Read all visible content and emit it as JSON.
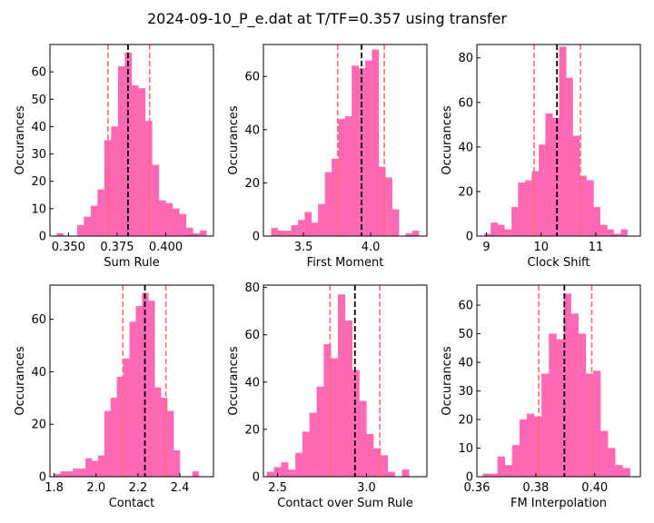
{
  "figure": {
    "title": "2024-09-10_P_e.dat at T/TF=0.357 using transfer"
  },
  "style": {
    "bar_color": "#ff69b4",
    "bar_edge": "#ff69b4",
    "mean_line_color": "#000000",
    "sigma_line_color": "#ff6b6b"
  },
  "chart_data": [
    {
      "type": "bar",
      "title": "",
      "xlabel": "Sum Rule",
      "ylabel": "Occurances",
      "xlim": [
        0.3405,
        0.4245
      ],
      "ylim": [
        0,
        70
      ],
      "xticks": [
        0.35,
        0.375,
        0.4
      ],
      "xtick_labels": [
        "0.350",
        "0.375",
        "0.400"
      ],
      "yticks": [
        0,
        10,
        20,
        30,
        40,
        50,
        60
      ],
      "bin_edges": [
        0.344,
        0.3475,
        0.351,
        0.3545,
        0.358,
        0.3615,
        0.365,
        0.3685,
        0.372,
        0.3755,
        0.379,
        0.3825,
        0.386,
        0.3895,
        0.393,
        0.3965,
        0.4,
        0.4035,
        0.407,
        0.4105,
        0.414,
        0.4175,
        0.421
      ],
      "counts": [
        1,
        0,
        0,
        4,
        7,
        11,
        17,
        35,
        40,
        62,
        67,
        55,
        54,
        42,
        26,
        13,
        12,
        10,
        8,
        3,
        1,
        2
      ],
      "mean": 0.3806,
      "sigma_low": 0.3703,
      "sigma_high": 0.3917
    },
    {
      "type": "bar",
      "title": "",
      "xlabel": "First Moment",
      "ylabel": "Occurances",
      "xlim": [
        3.202,
        4.418
      ],
      "ylim": [
        0,
        72
      ],
      "xticks": [
        3.5,
        4.0
      ],
      "xtick_labels": [
        "3.5",
        "4.0"
      ],
      "yticks": [
        0,
        20,
        40,
        60
      ],
      "bin_edges": [
        3.26,
        3.31,
        3.36,
        3.41,
        3.46,
        3.51,
        3.56,
        3.61,
        3.66,
        3.71,
        3.76,
        3.81,
        3.86,
        3.91,
        3.96,
        4.01,
        4.06,
        4.11,
        4.16,
        4.21,
        4.26,
        4.31,
        4.36
      ],
      "counts": [
        3,
        2,
        2,
        4,
        6,
        9,
        5,
        12,
        24,
        29,
        44,
        45,
        64,
        63,
        66,
        70,
        26,
        22,
        10,
        0,
        1,
        2
      ],
      "mean": 3.932,
      "sigma_low": 3.754,
      "sigma_high": 4.101
    },
    {
      "type": "bar",
      "title": "",
      "xlabel": "Clock Shift",
      "ylabel": "Occurances",
      "xlim": [
        8.825,
        11.815
      ],
      "ylim": [
        0,
        86
      ],
      "xticks": [
        9,
        10,
        11
      ],
      "xtick_labels": [
        "9",
        "10",
        "11"
      ],
      "yticks": [
        0,
        20,
        40,
        60,
        80
      ],
      "bin_edges": [
        8.96,
        9.08,
        9.21,
        9.33,
        9.46,
        9.58,
        9.71,
        9.83,
        9.96,
        10.08,
        10.21,
        10.33,
        10.46,
        10.58,
        10.71,
        10.83,
        10.96,
        11.08,
        11.21,
        11.33,
        11.46,
        11.58,
        11.71
      ],
      "counts": [
        1,
        6,
        5,
        3,
        13,
        24,
        25,
        29,
        41,
        55,
        53,
        85,
        71,
        45,
        27,
        25,
        13,
        5,
        3,
        1,
        3,
        0
      ],
      "mean": 10.29,
      "sigma_low": 9.87,
      "sigma_high": 10.72
    },
    {
      "type": "bar",
      "title": "",
      "xlabel": "Contact",
      "ylabel": "Occurances",
      "xlim": [
        1.78,
        2.56
      ],
      "ylim": [
        0,
        73
      ],
      "xticks": [
        1.8,
        2.0,
        2.2,
        2.4
      ],
      "xtick_labels": [
        "1.8",
        "2.0",
        "2.2",
        "2.4"
      ],
      "yticks": [
        0,
        20,
        40,
        60
      ],
      "bin_edges": [
        1.8,
        1.83,
        1.86,
        1.89,
        1.92,
        1.95,
        1.98,
        2.01,
        2.04,
        2.07,
        2.1,
        2.13,
        2.16,
        2.19,
        2.22,
        2.25,
        2.28,
        2.31,
        2.34,
        2.37,
        2.4,
        2.43,
        2.46,
        2.49,
        2.52
      ],
      "counts": [
        1,
        2,
        2,
        3,
        3,
        7,
        6,
        8,
        25,
        30,
        38,
        45,
        59,
        65,
        70,
        67,
        34,
        30,
        25,
        10,
        0,
        0,
        2,
        0
      ],
      "mean": 2.233,
      "sigma_low": 2.128,
      "sigma_high": 2.333
    },
    {
      "type": "bar",
      "title": "",
      "xlabel": "Contact over Sum Rule",
      "ylabel": "Occurances",
      "xlim": [
        2.42,
        3.34
      ],
      "ylim": [
        0,
        81
      ],
      "xticks": [
        2.5,
        3.0
      ],
      "xtick_labels": [
        "2.5",
        "3.0"
      ],
      "yticks": [
        0,
        20,
        40,
        60,
        80
      ],
      "bin_edges": [
        2.44,
        2.48,
        2.52,
        2.56,
        2.6,
        2.64,
        2.68,
        2.72,
        2.76,
        2.8,
        2.84,
        2.88,
        2.92,
        2.96,
        3.0,
        3.04,
        3.08,
        3.12,
        3.16,
        3.2,
        3.24,
        3.28,
        3.32
      ],
      "counts": [
        2,
        4,
        6,
        3,
        10,
        19,
        27,
        38,
        56,
        50,
        77,
        66,
        45,
        32,
        18,
        12,
        9,
        2,
        0,
        3,
        0,
        0
      ],
      "mean": 2.935,
      "sigma_low": 2.795,
      "sigma_high": 3.075
    },
    {
      "type": "bar",
      "title": "",
      "xlabel": "FM Interpolation",
      "ylabel": "Occurances",
      "xlim": [
        0.36,
        0.4155
      ],
      "ylim": [
        0,
        67
      ],
      "xticks": [
        0.36,
        0.38,
        0.4
      ],
      "xtick_labels": [
        "0.36",
        "0.38",
        "0.40"
      ],
      "yticks": [
        0,
        10,
        20,
        30,
        40,
        50,
        60
      ],
      "bin_edges": [
        0.362,
        0.3645,
        0.367,
        0.3695,
        0.372,
        0.3745,
        0.377,
        0.3795,
        0.382,
        0.3845,
        0.387,
        0.3895,
        0.392,
        0.3945,
        0.397,
        0.3995,
        0.402,
        0.4045,
        0.407,
        0.4095,
        0.412
      ],
      "counts": [
        1,
        1,
        7,
        4,
        11,
        20,
        22,
        21,
        36,
        50,
        48,
        64,
        57,
        50,
        36,
        37,
        16,
        10,
        4,
        3
      ],
      "mean": 0.3897,
      "sigma_low": 0.381,
      "sigma_high": 0.399
    }
  ]
}
